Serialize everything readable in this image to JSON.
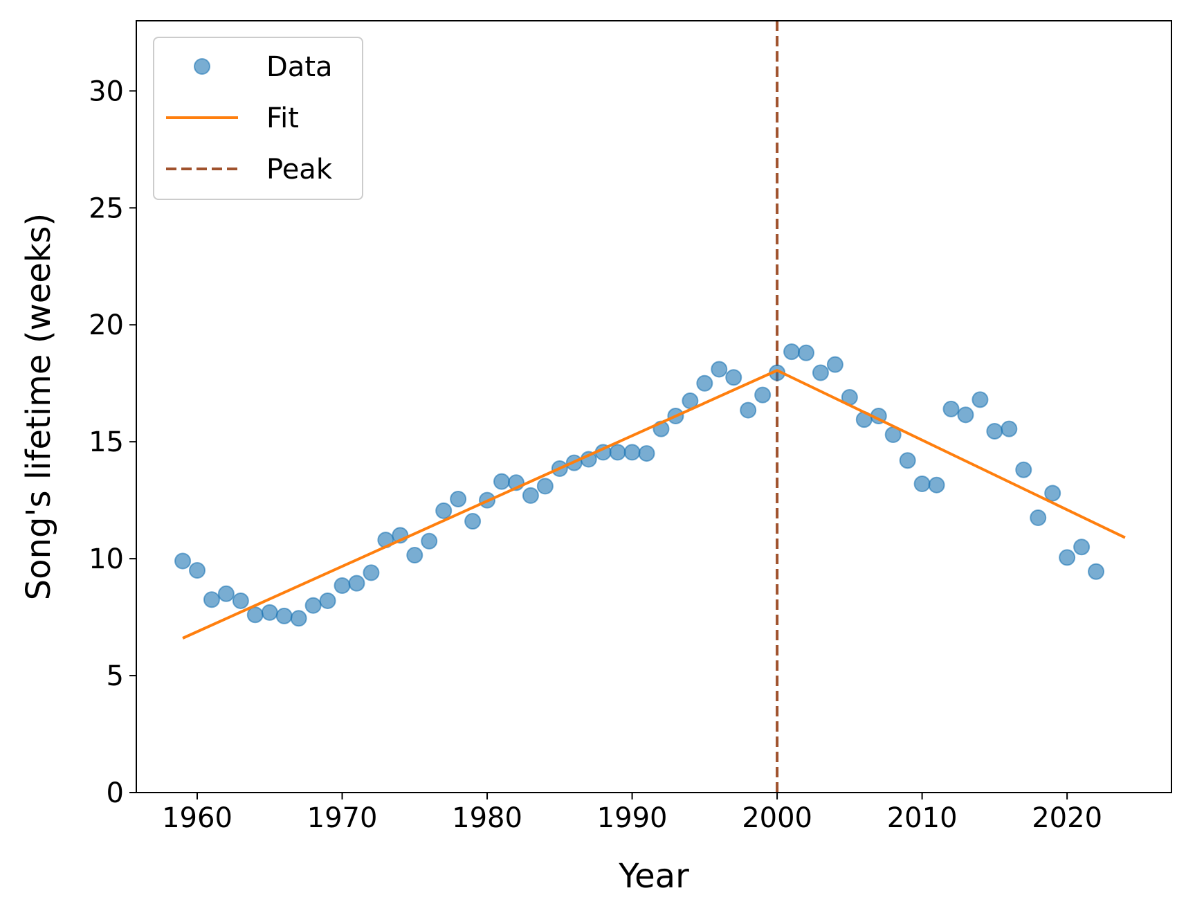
{
  "chart_data": {
    "type": "scatter",
    "title": "",
    "xlabel": "Year",
    "ylabel": "Song's lifetime (weeks)",
    "xlim": [
      1955.8,
      2027.2
    ],
    "ylim": [
      0,
      33
    ],
    "x_ticks": [
      1960,
      1970,
      1980,
      1990,
      2000,
      2010,
      2020
    ],
    "y_ticks": [
      0,
      5,
      10,
      15,
      20,
      25,
      30
    ],
    "grid": false,
    "legend_position": "top-left",
    "colors": {
      "data": "#1f77b4",
      "fit": "#ff7f0e",
      "peak": "#a0522d"
    },
    "series": [
      {
        "name": "Data",
        "kind": "scatter",
        "x": [
          1959,
          1960,
          1961,
          1962,
          1963,
          1964,
          1965,
          1966,
          1967,
          1968,
          1969,
          1970,
          1971,
          1972,
          1973,
          1974,
          1975,
          1976,
          1977,
          1978,
          1979,
          1980,
          1981,
          1982,
          1983,
          1984,
          1985,
          1986,
          1987,
          1988,
          1989,
          1990,
          1991,
          1992,
          1993,
          1994,
          1995,
          1996,
          1997,
          1998,
          1999,
          2000,
          2001,
          2002,
          2003,
          2004,
          2005,
          2006,
          2007,
          2008,
          2009,
          2010,
          2011,
          2012,
          2013,
          2014,
          2015,
          2016,
          2017,
          2018,
          2019,
          2020,
          2021,
          2022
        ],
        "y": [
          9.9,
          9.5,
          8.25,
          8.5,
          8.2,
          7.6,
          7.7,
          7.55,
          7.45,
          8.0,
          8.2,
          8.85,
          8.95,
          9.4,
          10.8,
          11.0,
          10.15,
          10.75,
          12.05,
          12.55,
          11.6,
          12.5,
          13.3,
          13.25,
          12.7,
          13.1,
          13.85,
          14.1,
          14.25,
          14.55,
          14.55,
          14.55,
          14.5,
          15.55,
          16.1,
          16.75,
          17.5,
          18.1,
          17.75,
          16.35,
          17.0,
          17.95,
          18.85,
          18.8,
          17.95,
          18.3,
          16.9,
          15.95,
          16.1,
          15.3,
          14.2,
          13.2,
          13.15,
          16.4,
          16.15,
          16.8,
          15.45,
          15.55,
          13.8,
          11.75,
          12.8,
          10.05,
          10.5,
          9.45
        ]
      },
      {
        "name": "Fit",
        "kind": "line",
        "x": [
          1959,
          2000,
          2024
        ],
        "y": [
          6.6,
          18.05,
          10.9
        ]
      },
      {
        "name": "Peak",
        "kind": "vline",
        "x": [
          2000
        ]
      }
    ]
  }
}
